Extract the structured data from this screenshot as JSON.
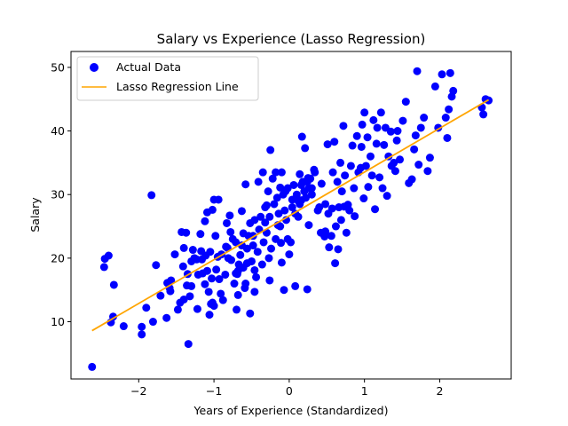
{
  "chart_data": {
    "type": "scatter",
    "title": "Salary vs Experience (Lasso Regression)",
    "xlabel": "Years of Experience (Standardized)",
    "ylabel": "Salary",
    "xlim": [
      -2.9,
      2.95
    ],
    "ylim": [
      1.0,
      52.5
    ],
    "xticks": [
      -2,
      -1,
      0,
      1,
      2
    ],
    "yticks": [
      10,
      20,
      30,
      40,
      50
    ],
    "grid": false,
    "legend": {
      "position": "upper-left",
      "entries": [
        "Actual Data",
        "Lasso Regression Line"
      ]
    },
    "colors": {
      "points": "#0000ff",
      "line": "#ffa500",
      "frame": "#000000"
    },
    "series": [
      {
        "name": "Actual Data",
        "kind": "scatter",
        "points": [
          [
            -2.62,
            2.9
          ],
          [
            -2.46,
            18.6
          ],
          [
            -2.45,
            19.9
          ],
          [
            -2.4,
            20.4
          ],
          [
            -2.33,
            15.8
          ],
          [
            -2.34,
            10.8
          ],
          [
            -2.37,
            9.9
          ],
          [
            -2.2,
            9.3
          ],
          [
            -1.96,
            9.2
          ],
          [
            -1.96,
            8.0
          ],
          [
            -1.83,
            29.9
          ],
          [
            -1.77,
            18.9
          ],
          [
            -1.81,
            10.0
          ],
          [
            -1.71,
            14.1
          ],
          [
            -1.63,
            10.6
          ],
          [
            -1.58,
            14.8
          ],
          [
            -1.62,
            16.1
          ],
          [
            -1.59,
            15.3
          ],
          [
            -1.52,
            20.6
          ],
          [
            -1.43,
            24.1
          ],
          [
            -1.4,
            21.6
          ],
          [
            -1.41,
            18.7
          ],
          [
            -1.37,
            24.0
          ],
          [
            -1.36,
            15.7
          ],
          [
            -1.34,
            6.5
          ],
          [
            -1.3,
            15.6
          ],
          [
            -1.28,
            21.3
          ],
          [
            -1.23,
            19.8
          ],
          [
            -1.21,
            17.4
          ],
          [
            -1.22,
            12.0
          ],
          [
            -1.17,
            21.1
          ],
          [
            -1.15,
            17.6
          ],
          [
            -1.12,
            15.9
          ],
          [
            -1.09,
            18.0
          ],
          [
            -1.12,
            25.8
          ],
          [
            -1.09,
            27.2
          ],
          [
            -1.06,
            11.1
          ],
          [
            -1.04,
            12.8
          ],
          [
            -1.02,
            13.0
          ],
          [
            -1.0,
            12.5
          ],
          [
            -0.98,
            23.5
          ],
          [
            -1.0,
            29.2
          ],
          [
            -0.94,
            29.2
          ],
          [
            -0.93,
            16.7
          ],
          [
            -0.9,
            20.6
          ],
          [
            -0.84,
            21.8
          ],
          [
            -0.82,
            21.6
          ],
          [
            -0.79,
            26.7
          ],
          [
            -0.78,
            24.1
          ],
          [
            -0.71,
            17.6
          ],
          [
            -0.7,
            11.9
          ],
          [
            -0.68,
            14.2
          ],
          [
            -0.68,
            18.0
          ],
          [
            -0.63,
            27.4
          ],
          [
            -0.61,
            23.9
          ],
          [
            -0.59,
            15.3
          ],
          [
            -0.58,
            31.6
          ],
          [
            -0.56,
            19.2
          ],
          [
            -0.52,
            11.3
          ],
          [
            -0.48,
            23.5
          ],
          [
            -0.46,
            14.7
          ],
          [
            -0.46,
            18.1
          ],
          [
            -0.41,
            32.0
          ],
          [
            -0.35,
            33.5
          ],
          [
            -0.32,
            25.6
          ],
          [
            -0.3,
            28.3
          ],
          [
            -0.27,
            20.0
          ],
          [
            -0.25,
            37.0
          ],
          [
            -0.26,
            16.5
          ],
          [
            -0.18,
            33.5
          ],
          [
            -0.15,
            25.2
          ],
          [
            -0.12,
            31.1
          ],
          [
            -0.11,
            22.4
          ],
          [
            -0.1,
            19.3
          ],
          [
            -0.07,
            15.0
          ],
          [
            -0.05,
            30.5
          ],
          [
            -0.02,
            23.0
          ],
          [
            0.0,
            20.6
          ],
          [
            0.04,
            29.2
          ],
          [
            0.08,
            15.6
          ],
          [
            0.12,
            26.5
          ],
          [
            0.14,
            33.2
          ],
          [
            0.16,
            29.1
          ],
          [
            0.17,
            39.1
          ],
          [
            0.21,
            37.3
          ],
          [
            0.24,
            15.1
          ],
          [
            0.25,
            32.6
          ],
          [
            0.26,
            25.2
          ],
          [
            0.3,
            31.0
          ],
          [
            0.33,
            33.9
          ],
          [
            0.38,
            27.5
          ],
          [
            0.43,
            31.7
          ],
          [
            0.47,
            23.4
          ],
          [
            0.48,
            24.2
          ],
          [
            0.51,
            37.9
          ],
          [
            0.53,
            21.7
          ],
          [
            0.57,
            27.8
          ],
          [
            0.6,
            38.3
          ],
          [
            0.61,
            19.2
          ],
          [
            0.65,
            21.4
          ],
          [
            0.69,
            26.0
          ],
          [
            0.72,
            40.8
          ],
          [
            0.73,
            28.1
          ],
          [
            0.76,
            24.0
          ],
          [
            0.78,
            28.4
          ],
          [
            0.82,
            34.5
          ],
          [
            0.84,
            37.7
          ],
          [
            0.87,
            26.6
          ],
          [
            0.9,
            39.2
          ],
          [
            0.95,
            34.2
          ],
          [
            0.97,
            41.0
          ],
          [
            0.99,
            29.4
          ],
          [
            1.0,
            42.9
          ],
          [
            1.05,
            31.2
          ],
          [
            1.08,
            36.0
          ],
          [
            1.12,
            41.7
          ],
          [
            1.14,
            27.7
          ],
          [
            1.17,
            40.5
          ],
          [
            1.2,
            32.7
          ],
          [
            1.22,
            42.9
          ],
          [
            1.26,
            37.8
          ],
          [
            1.3,
            29.8
          ],
          [
            1.35,
            39.9
          ],
          [
            1.39,
            35.0
          ],
          [
            1.41,
            33.7
          ],
          [
            1.43,
            38.5
          ],
          [
            1.47,
            35.5
          ],
          [
            1.51,
            41.6
          ],
          [
            1.55,
            44.6
          ],
          [
            1.59,
            31.8
          ],
          [
            1.63,
            32.4
          ],
          [
            1.66,
            37.1
          ],
          [
            1.68,
            39.3
          ],
          [
            1.7,
            49.4
          ],
          [
            1.72,
            34.7
          ],
          [
            1.75,
            40.5
          ],
          [
            1.79,
            42.1
          ],
          [
            1.84,
            33.7
          ],
          [
            1.87,
            35.8
          ],
          [
            1.94,
            47.0
          ],
          [
            1.98,
            40.5
          ],
          [
            2.03,
            48.9
          ],
          [
            2.08,
            42.1
          ],
          [
            2.1,
            38.9
          ],
          [
            2.12,
            43.4
          ],
          [
            2.14,
            49.1
          ],
          [
            2.16,
            45.4
          ],
          [
            2.18,
            46.3
          ],
          [
            2.56,
            43.7
          ],
          [
            2.58,
            42.6
          ],
          [
            2.61,
            45.0
          ],
          [
            2.65,
            44.8
          ],
          [
            -1.57,
            16.5
          ],
          [
            -1.45,
            13.0
          ],
          [
            -1.35,
            17.5
          ],
          [
            -1.3,
            19.5
          ],
          [
            -1.26,
            20.0
          ],
          [
            -1.18,
            23.8
          ],
          [
            -1.16,
            19.8
          ],
          [
            -1.11,
            20.4
          ],
          [
            -1.07,
            14.7
          ],
          [
            -1.05,
            21.0
          ],
          [
            -1.03,
            16.8
          ],
          [
            -1.02,
            27.6
          ],
          [
            -0.97,
            18.2
          ],
          [
            -0.95,
            20.2
          ],
          [
            -0.91,
            14.4
          ],
          [
            -0.88,
            13.4
          ],
          [
            -0.85,
            17.4
          ],
          [
            -0.83,
            25.5
          ],
          [
            -0.81,
            20.0
          ],
          [
            -0.77,
            19.7
          ],
          [
            -0.75,
            23.0
          ],
          [
            -0.73,
            16.0
          ],
          [
            -0.71,
            22.5
          ],
          [
            -0.69,
            17.5
          ],
          [
            -0.67,
            19.0
          ],
          [
            -0.65,
            20.5
          ],
          [
            -0.63,
            22.0
          ],
          [
            -0.61,
            18.5
          ],
          [
            -0.58,
            16.0
          ],
          [
            -0.56,
            21.5
          ],
          [
            -0.54,
            23.5
          ],
          [
            -0.52,
            25.5
          ],
          [
            -0.5,
            19.5
          ],
          [
            -0.48,
            22.0
          ],
          [
            -0.46,
            26.0
          ],
          [
            -0.44,
            17.0
          ],
          [
            -0.42,
            21.0
          ],
          [
            -0.4,
            24.5
          ],
          [
            -0.38,
            26.5
          ],
          [
            -0.36,
            19.0
          ],
          [
            -0.34,
            22.5
          ],
          [
            -0.32,
            28.0
          ],
          [
            -0.3,
            24.0
          ],
          [
            -0.28,
            30.5
          ],
          [
            -0.26,
            26.5
          ],
          [
            -0.24,
            21.5
          ],
          [
            -0.22,
            32.5
          ],
          [
            -0.2,
            28.5
          ],
          [
            -0.18,
            23.0
          ],
          [
            -0.16,
            29.5
          ],
          [
            -0.14,
            27.0
          ],
          [
            -0.12,
            25.0
          ],
          [
            -0.1,
            33.5
          ],
          [
            -0.08,
            30.0
          ],
          [
            -0.06,
            27.5
          ],
          [
            -0.04,
            26.0
          ],
          [
            -0.02,
            31.0
          ],
          [
            0.02,
            22.5
          ],
          [
            0.04,
            28.0
          ],
          [
            0.06,
            31.5
          ],
          [
            0.08,
            27.0
          ],
          [
            0.1,
            30.0
          ],
          [
            0.12,
            29.0
          ],
          [
            0.14,
            28.5
          ],
          [
            0.16,
            31.5
          ],
          [
            0.18,
            32.0
          ],
          [
            0.2,
            30.5
          ],
          [
            0.22,
            29.5
          ],
          [
            0.24,
            32.0
          ],
          [
            0.26,
            31.0
          ],
          [
            0.28,
            32.5
          ],
          [
            0.3,
            30.0
          ],
          [
            0.34,
            33.5
          ],
          [
            0.4,
            28.0
          ],
          [
            0.42,
            24.0
          ],
          [
            0.48,
            28.5
          ],
          [
            0.52,
            27.0
          ],
          [
            0.56,
            23.5
          ],
          [
            0.58,
            33.5
          ],
          [
            0.62,
            25.0
          ],
          [
            0.64,
            32.0
          ],
          [
            0.66,
            28.0
          ],
          [
            0.68,
            35.0
          ],
          [
            0.7,
            30.5
          ],
          [
            0.74,
            33.0
          ],
          [
            0.8,
            27.5
          ],
          [
            0.86,
            31.0
          ],
          [
            0.92,
            33.5
          ],
          [
            0.96,
            37.5
          ],
          [
            1.02,
            34.5
          ],
          [
            1.04,
            39.0
          ],
          [
            1.1,
            33.0
          ],
          [
            1.16,
            38.0
          ],
          [
            1.24,
            31.0
          ],
          [
            1.28,
            40.5
          ],
          [
            1.32,
            36.0
          ],
          [
            1.36,
            34.5
          ],
          [
            1.44,
            40.0
          ],
          [
            -1.9,
            12.2
          ],
          [
            -1.48,
            11.9
          ],
          [
            -1.4,
            13.5
          ],
          [
            -1.32,
            14.0
          ]
        ]
      },
      {
        "name": "Lasso Regression Line",
        "kind": "line",
        "points": [
          [
            -2.62,
            8.6
          ],
          [
            2.65,
            44.9
          ]
        ]
      }
    ]
  }
}
